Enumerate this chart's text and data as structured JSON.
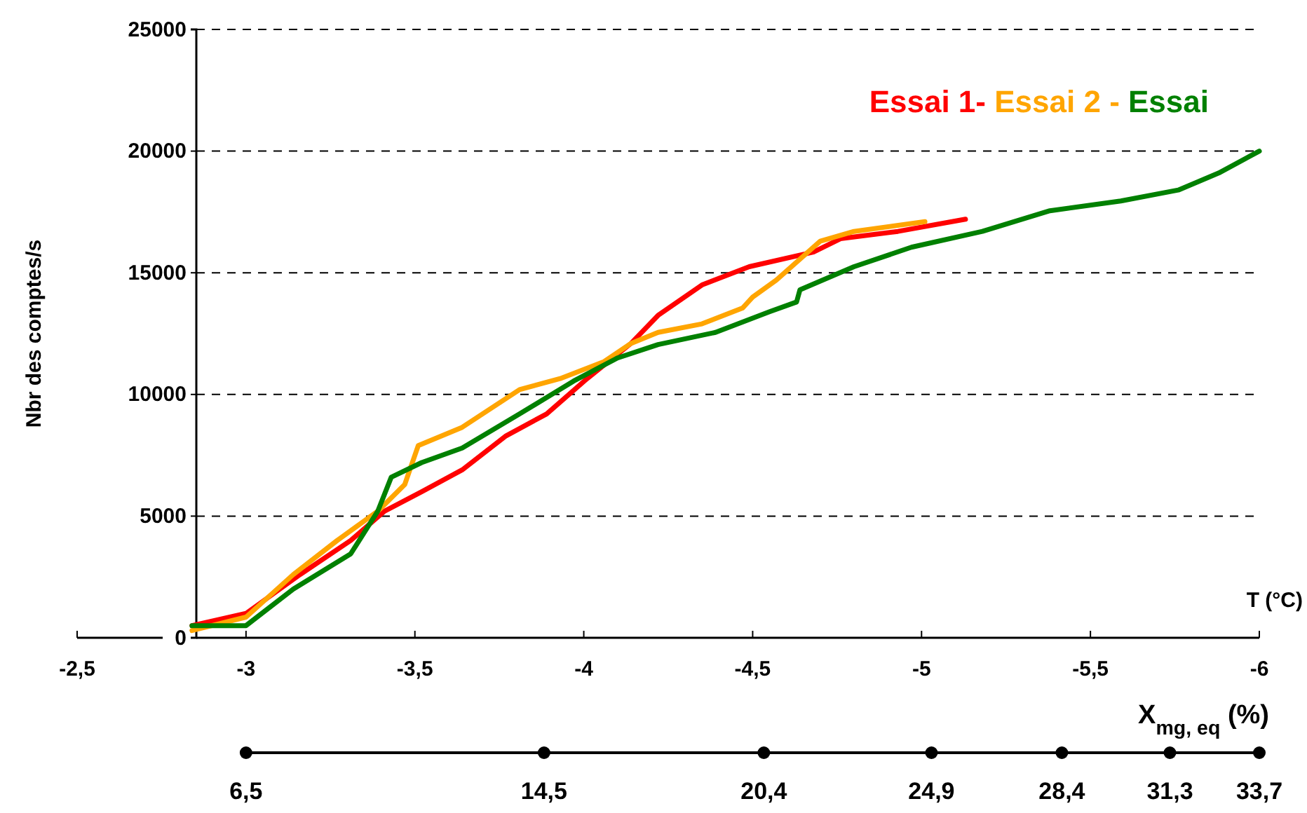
{
  "chart_data": {
    "type": "line",
    "xlabel": "T (°C)",
    "ylabel": "Nbr des comptes/s",
    "x2label": "X$_{mg, eq}$ (%)",
    "xlim": [
      -2.5,
      -6
    ],
    "xticks": [
      {
        "value": -2.5,
        "label": "-2,5"
      },
      -3,
      {
        "value": -3.5,
        "label": "-3,5"
      },
      -4,
      {
        "value": -4.5,
        "label": "-4,5"
      },
      -5,
      {
        "value": -5.5,
        "label": "-5,5"
      },
      -6
    ],
    "x2lim": [
      6.5,
      33.7
    ],
    "x2ticks": [
      {
        "value": 6.5,
        "label": "6,5"
      },
      {
        "value": 14.5,
        "label": "14,5"
      },
      {
        "value": 20.4,
        "label": "20,4"
      },
      {
        "value": 24.9,
        "label": "24,9"
      },
      {
        "value": 28.4,
        "label": "28,4"
      },
      {
        "value": 31.3,
        "label": "31,3"
      },
      {
        "value": 33.7,
        "label": "33,7"
      }
    ],
    "ylim": [
      0,
      25000
    ],
    "yticks": [
      0,
      5000,
      10000,
      15000,
      20000,
      25000
    ],
    "grid": "y",
    "legend": "top right",
    "line_style": "solid",
    "marker": "none",
    "series": [
      {
        "name": "Essai 1-",
        "color": "#ff0000",
        "x": [
          -2.84,
          -3.0,
          -3.16,
          -3.31,
          -3.41,
          -3.52,
          -3.64,
          -3.77,
          -3.89,
          -4.01,
          -4.14,
          -4.22,
          -4.35,
          -4.49,
          -4.68,
          -4.76,
          -4.93,
          -5.13
        ],
        "values": [
          500,
          1000,
          2600,
          4000,
          5200,
          6000,
          6900,
          8300,
          9200,
          10650,
          12100,
          13250,
          14500,
          15250,
          15850,
          16400,
          16700,
          17200
        ]
      },
      {
        "name": "Essai 2 -",
        "color": "#ffa500",
        "x": [
          -2.84,
          -3.0,
          -3.14,
          -3.27,
          -3.39,
          -3.47,
          -3.51,
          -3.64,
          -3.81,
          -3.93,
          -4.06,
          -4.14,
          -4.22,
          -4.35,
          -4.47,
          -4.5,
          -4.57,
          -4.7,
          -4.8,
          -5.01
        ],
        "values": [
          300,
          850,
          2600,
          4000,
          5200,
          6300,
          7900,
          8650,
          10200,
          10650,
          11350,
          12100,
          12550,
          12900,
          13550,
          14000,
          14700,
          16300,
          16700,
          17100
        ]
      },
      {
        "name": "Essai",
        "color": "#008000",
        "x": [
          -2.84,
          -3.0,
          -3.14,
          -3.31,
          -3.39,
          -3.43,
          -3.52,
          -3.64,
          -3.81,
          -3.97,
          -4.1,
          -4.22,
          -4.39,
          -4.55,
          -4.63,
          -4.64,
          -4.8,
          -4.97,
          -5.18,
          -5.38,
          -5.59,
          -5.76,
          -5.88,
          -6.0
        ],
        "values": [
          500,
          500,
          2000,
          3450,
          5200,
          6600,
          7200,
          7800,
          9200,
          10550,
          11500,
          12050,
          12550,
          13400,
          13800,
          14300,
          15250,
          16050,
          16700,
          17550,
          17950,
          18400,
          19100,
          20000
        ]
      }
    ]
  }
}
